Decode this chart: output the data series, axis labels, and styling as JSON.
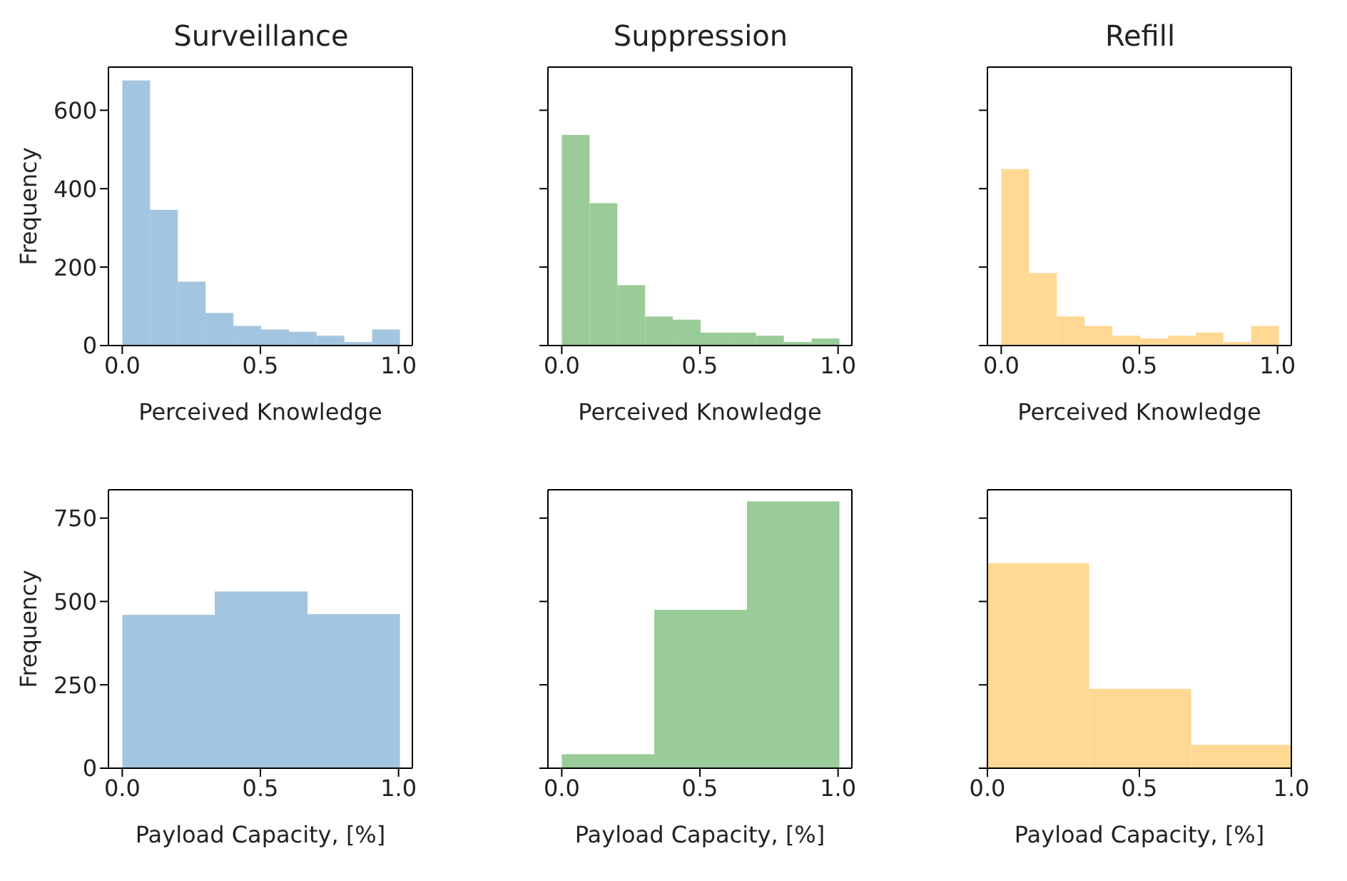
{
  "chart_data": [
    {
      "type": "histogram",
      "title": "Surveillance",
      "xlabel": "Perceived Knowledge",
      "ylabel": "Frequency",
      "color": "#a3c5e0",
      "bins": [
        0,
        0.1,
        0.2,
        0.3,
        0.4,
        0.5,
        0.6,
        0.7,
        0.8,
        0.9,
        1.0
      ],
      "values": [
        676,
        346,
        163,
        83,
        50,
        41,
        35,
        25,
        9,
        41
      ],
      "xlim": [
        -0.05,
        1.05
      ],
      "xticks": [
        {
          "value": 0,
          "label": "0.0"
        },
        {
          "value": 0.5,
          "label": "0.5"
        },
        {
          "value": 1,
          "label": "1.0"
        }
      ],
      "ylim": [
        0,
        710
      ],
      "yticks": [
        0,
        200,
        400,
        600
      ]
    },
    {
      "type": "histogram",
      "title": "Suppression",
      "xlabel": "Perceived Knowledge",
      "color": "#99cc98",
      "bins": [
        0,
        0.1,
        0.2,
        0.3,
        0.4,
        0.5,
        0.6,
        0.7,
        0.8,
        0.9,
        1.0
      ],
      "values": [
        537,
        363,
        154,
        74,
        66,
        33,
        33,
        25,
        9,
        18
      ],
      "xlim": [
        -0.05,
        1.05
      ],
      "xticks": [
        {
          "value": 0,
          "label": "0.0"
        },
        {
          "value": 0.5,
          "label": "0.5"
        },
        {
          "value": 1,
          "label": "1.0"
        }
      ],
      "ylim": [
        0,
        710
      ],
      "yticks": [
        0,
        200,
        400,
        600
      ],
      "tick_labels": "x"
    },
    {
      "type": "histogram",
      "title": "Refill",
      "xlabel": "Perceived Knowledge",
      "color": "#ffd893",
      "bins": [
        0,
        0.1,
        0.2,
        0.3,
        0.4,
        0.5,
        0.6,
        0.7,
        0.8,
        0.9,
        1.0
      ],
      "values": [
        450,
        185,
        74,
        50,
        25,
        18,
        25,
        33,
        9,
        50
      ],
      "xlim": [
        -0.05,
        1.05
      ],
      "xticks": [
        {
          "value": 0,
          "label": "0.0"
        },
        {
          "value": 0.5,
          "label": "0.5"
        },
        {
          "value": 1,
          "label": "1.0"
        }
      ],
      "ylim": [
        0,
        710
      ],
      "yticks": [
        0,
        200,
        400,
        600
      ],
      "tick_labels": "x"
    },
    {
      "type": "histogram",
      "xlabel": "Payload Capacity, [%]",
      "ylabel": "Frequency",
      "color": "#a3c5e0",
      "bins": [
        0,
        0.333,
        0.667,
        1.0
      ],
      "values": [
        460,
        530,
        462
      ],
      "xlim": [
        -0.05,
        1.05
      ],
      "xticks": [
        {
          "value": 0,
          "label": "0.0"
        },
        {
          "value": 0.5,
          "label": "0.5"
        },
        {
          "value": 1,
          "label": "1.0"
        }
      ],
      "ylim": [
        0,
        835
      ],
      "yticks": [
        0,
        250,
        500,
        750
      ]
    },
    {
      "type": "histogram",
      "xlabel": "Payload Capacity, [%]",
      "color": "#99cc98",
      "bins": [
        0,
        0.333,
        0.667,
        1.0
      ],
      "values": [
        42,
        475,
        800
      ],
      "xlim": [
        -0.05,
        1.05
      ],
      "xticks": [
        {
          "value": 0,
          "label": "0.0"
        },
        {
          "value": 0.5,
          "label": "0.5"
        },
        {
          "value": 1,
          "label": "1.0"
        }
      ],
      "ylim": [
        0,
        835
      ],
      "yticks": [
        0,
        250,
        500,
        750
      ],
      "tick_labels": "x"
    },
    {
      "type": "histogram",
      "xlabel": "Payload Capacity, [%]",
      "color": "#ffd893",
      "bins": [
        0,
        0.333,
        0.667,
        1.0
      ],
      "values": [
        615,
        238,
        70
      ],
      "xlim": [
        0,
        1
      ],
      "xticks": [
        {
          "value": 0,
          "label": "0.0"
        },
        {
          "value": 0.5,
          "label": "0.5"
        },
        {
          "value": 1,
          "label": "1.0"
        }
      ],
      "ylim": [
        0,
        835
      ],
      "yticks": [
        0,
        250,
        500,
        750
      ],
      "tick_labels": "x"
    }
  ]
}
